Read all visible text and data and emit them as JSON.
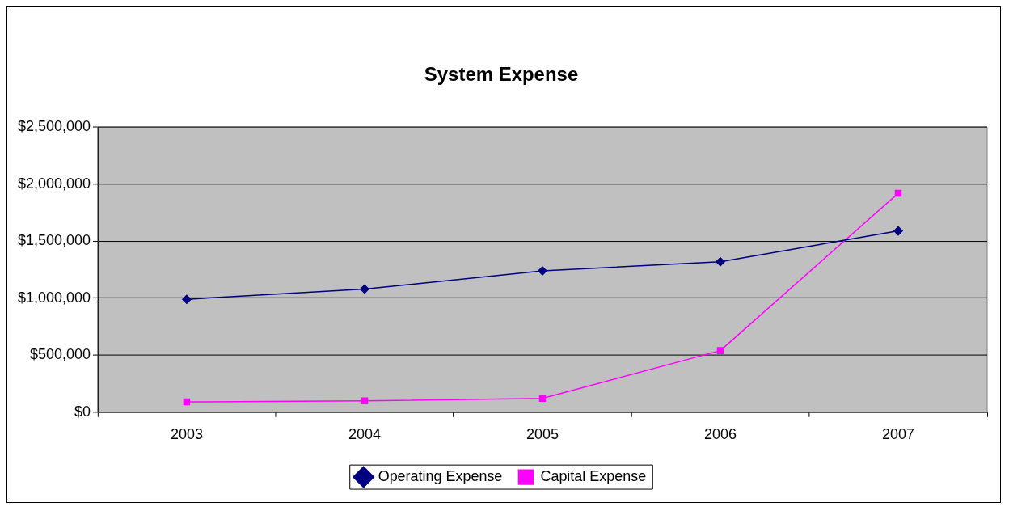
{
  "chart_data": {
    "type": "line",
    "title": "System Expense",
    "categories": [
      "2003",
      "2004",
      "2005",
      "2006",
      "2007"
    ],
    "series": [
      {
        "name": "Operating Expense",
        "color": "#000080",
        "marker": "diamond",
        "values": [
          990000,
          1080000,
          1240000,
          1320000,
          1590000
        ]
      },
      {
        "name": "Capital Expense",
        "color": "#ff00ff",
        "marker": "square",
        "values": [
          90000,
          100000,
          120000,
          540000,
          1920000
        ]
      }
    ],
    "ylim": [
      0,
      2500000
    ],
    "yticks": [
      {
        "value": 0,
        "label": "$0"
      },
      {
        "value": 500000,
        "label": "$500,000"
      },
      {
        "value": 1000000,
        "label": "$1,000,000"
      },
      {
        "value": 1500000,
        "label": "$1,500,000"
      },
      {
        "value": 2000000,
        "label": "$2,000,000"
      },
      {
        "value": 2500000,
        "label": "$2,500,000"
      }
    ],
    "grid": "y",
    "legend": "bottom"
  }
}
